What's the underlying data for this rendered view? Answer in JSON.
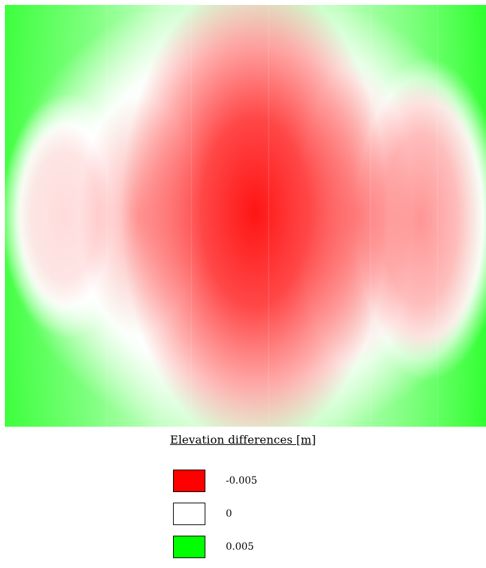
{
  "map": {
    "colors": {
      "negative": "#ff0000",
      "zero": "#ffffff",
      "positive": "#00ff00"
    }
  },
  "legend": {
    "title": "Elevation differences [m]",
    "items": [
      {
        "label": "-0.005",
        "color": "#ff0000"
      },
      {
        "label": "0",
        "color": "#ffffff"
      },
      {
        "label": "0.005",
        "color": "#00ff00"
      }
    ]
  }
}
